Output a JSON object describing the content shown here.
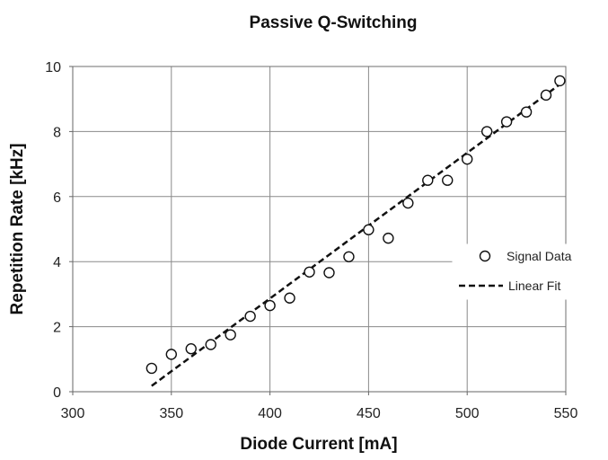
{
  "chart_data": {
    "type": "scatter",
    "title": "Passive Q-Switching",
    "xlabel": "Diode Current [mA]",
    "ylabel": "Repetition Rate [kHz]",
    "xlim": [
      300,
      550
    ],
    "ylim": [
      0,
      10
    ],
    "xticks": [
      300,
      350,
      400,
      450,
      500,
      550
    ],
    "yticks": [
      0,
      2,
      4,
      6,
      8,
      10
    ],
    "grid": true,
    "legend_position": "right",
    "series": [
      {
        "name": "Signal Data",
        "kind": "markers",
        "marker": "hollow-circle",
        "color": "#111111",
        "x": [
          340,
          350,
          360,
          370,
          380,
          390,
          400,
          410,
          420,
          430,
          440,
          450,
          460,
          470,
          480,
          490,
          500,
          510,
          520,
          530,
          540,
          547
        ],
        "y": [
          0.72,
          1.15,
          1.32,
          1.45,
          1.75,
          2.32,
          2.65,
          2.88,
          3.68,
          3.66,
          4.15,
          4.98,
          4.72,
          5.8,
          6.5,
          6.5,
          7.15,
          8.0,
          8.3,
          8.6,
          9.12,
          9.56
        ]
      },
      {
        "name": "Linear Fit",
        "kind": "line",
        "style": "dashed",
        "color": "#111111",
        "x": [
          340,
          547
        ],
        "y": [
          0.18,
          9.45
        ]
      }
    ]
  }
}
